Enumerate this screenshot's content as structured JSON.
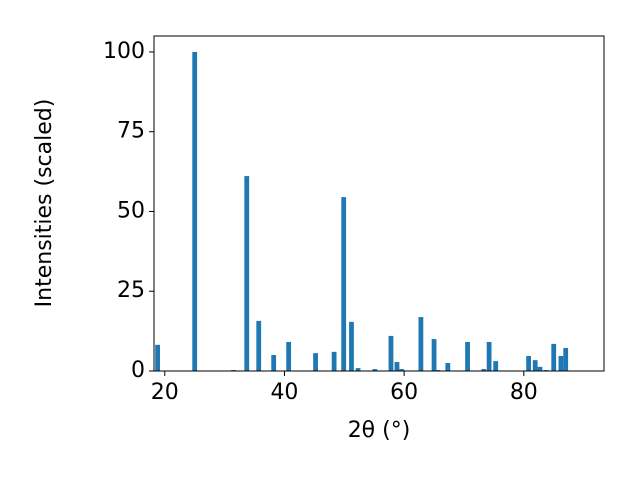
{
  "chart_data": {
    "type": "bar",
    "color": "#1f77b4",
    "x_label": "2θ (°)",
    "y_label": "Intensities (scaled)",
    "x": [
      18.8,
      25.0,
      31.5,
      33.7,
      35.7,
      38.2,
      40.7,
      45.2,
      48.3,
      49.9,
      51.2,
      52.3,
      55.1,
      57.8,
      58.8,
      59.6,
      62.8,
      65.0,
      65.6,
      67.3,
      70.6,
      73.3,
      74.2,
      75.3,
      80.8,
      81.9,
      82.7,
      83.7,
      85.0,
      86.2,
      87.0
    ],
    "values": [
      8.2,
      100,
      0.3,
      61.1,
      15.7,
      5.0,
      9.1,
      5.6,
      6.0,
      54.5,
      15.4,
      0.9,
      0.6,
      11.0,
      2.8,
      0.6,
      16.9,
      10.0,
      0.3,
      2.5,
      9.1,
      0.6,
      9.1,
      3.1,
      4.7,
      3.4,
      1.3,
      0.3,
      8.5,
      4.7,
      7.2
    ],
    "bar_width": 0.8,
    "xlim": [
      18.2,
      93.4
    ],
    "xticks": [
      20,
      40,
      60,
      80
    ],
    "ylim": [
      0,
      105
    ],
    "yticks": [
      0,
      25,
      50,
      75,
      100
    ],
    "grid": false
  }
}
